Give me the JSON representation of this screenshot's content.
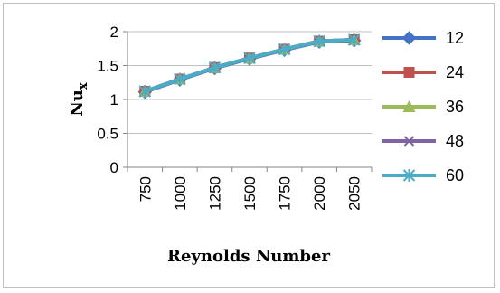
{
  "chart_data": {
    "type": "line",
    "title": "",
    "xlabel": "Reynolds Number",
    "ylabel": {
      "main": "Nu",
      "sub": "x"
    },
    "categories": [
      "750",
      "1000",
      "1250",
      "1500",
      "1750",
      "2000",
      "2050"
    ],
    "ylim": [
      0,
      2
    ],
    "yticks": [
      "0",
      "0.5",
      "1",
      "1.5",
      "2"
    ],
    "grid": "horizontal",
    "legend_position": "right",
    "series": [
      {
        "name": "12",
        "color": "#4472c4",
        "marker": "diamond",
        "values": [
          1.11,
          1.29,
          1.46,
          1.6,
          1.73,
          1.85,
          1.87
        ]
      },
      {
        "name": "24",
        "color": "#c0504d",
        "marker": "square",
        "values": [
          1.12,
          1.3,
          1.47,
          1.61,
          1.74,
          1.86,
          1.88
        ]
      },
      {
        "name": "36",
        "color": "#9bbb59",
        "marker": "triangle",
        "values": [
          1.12,
          1.3,
          1.47,
          1.61,
          1.74,
          1.86,
          1.88
        ]
      },
      {
        "name": "48",
        "color": "#8064a2",
        "marker": "x",
        "values": [
          1.12,
          1.3,
          1.47,
          1.61,
          1.74,
          1.86,
          1.88
        ]
      },
      {
        "name": "60",
        "color": "#4bacc6",
        "marker": "star",
        "values": [
          1.12,
          1.3,
          1.47,
          1.61,
          1.74,
          1.86,
          1.88
        ]
      }
    ]
  }
}
